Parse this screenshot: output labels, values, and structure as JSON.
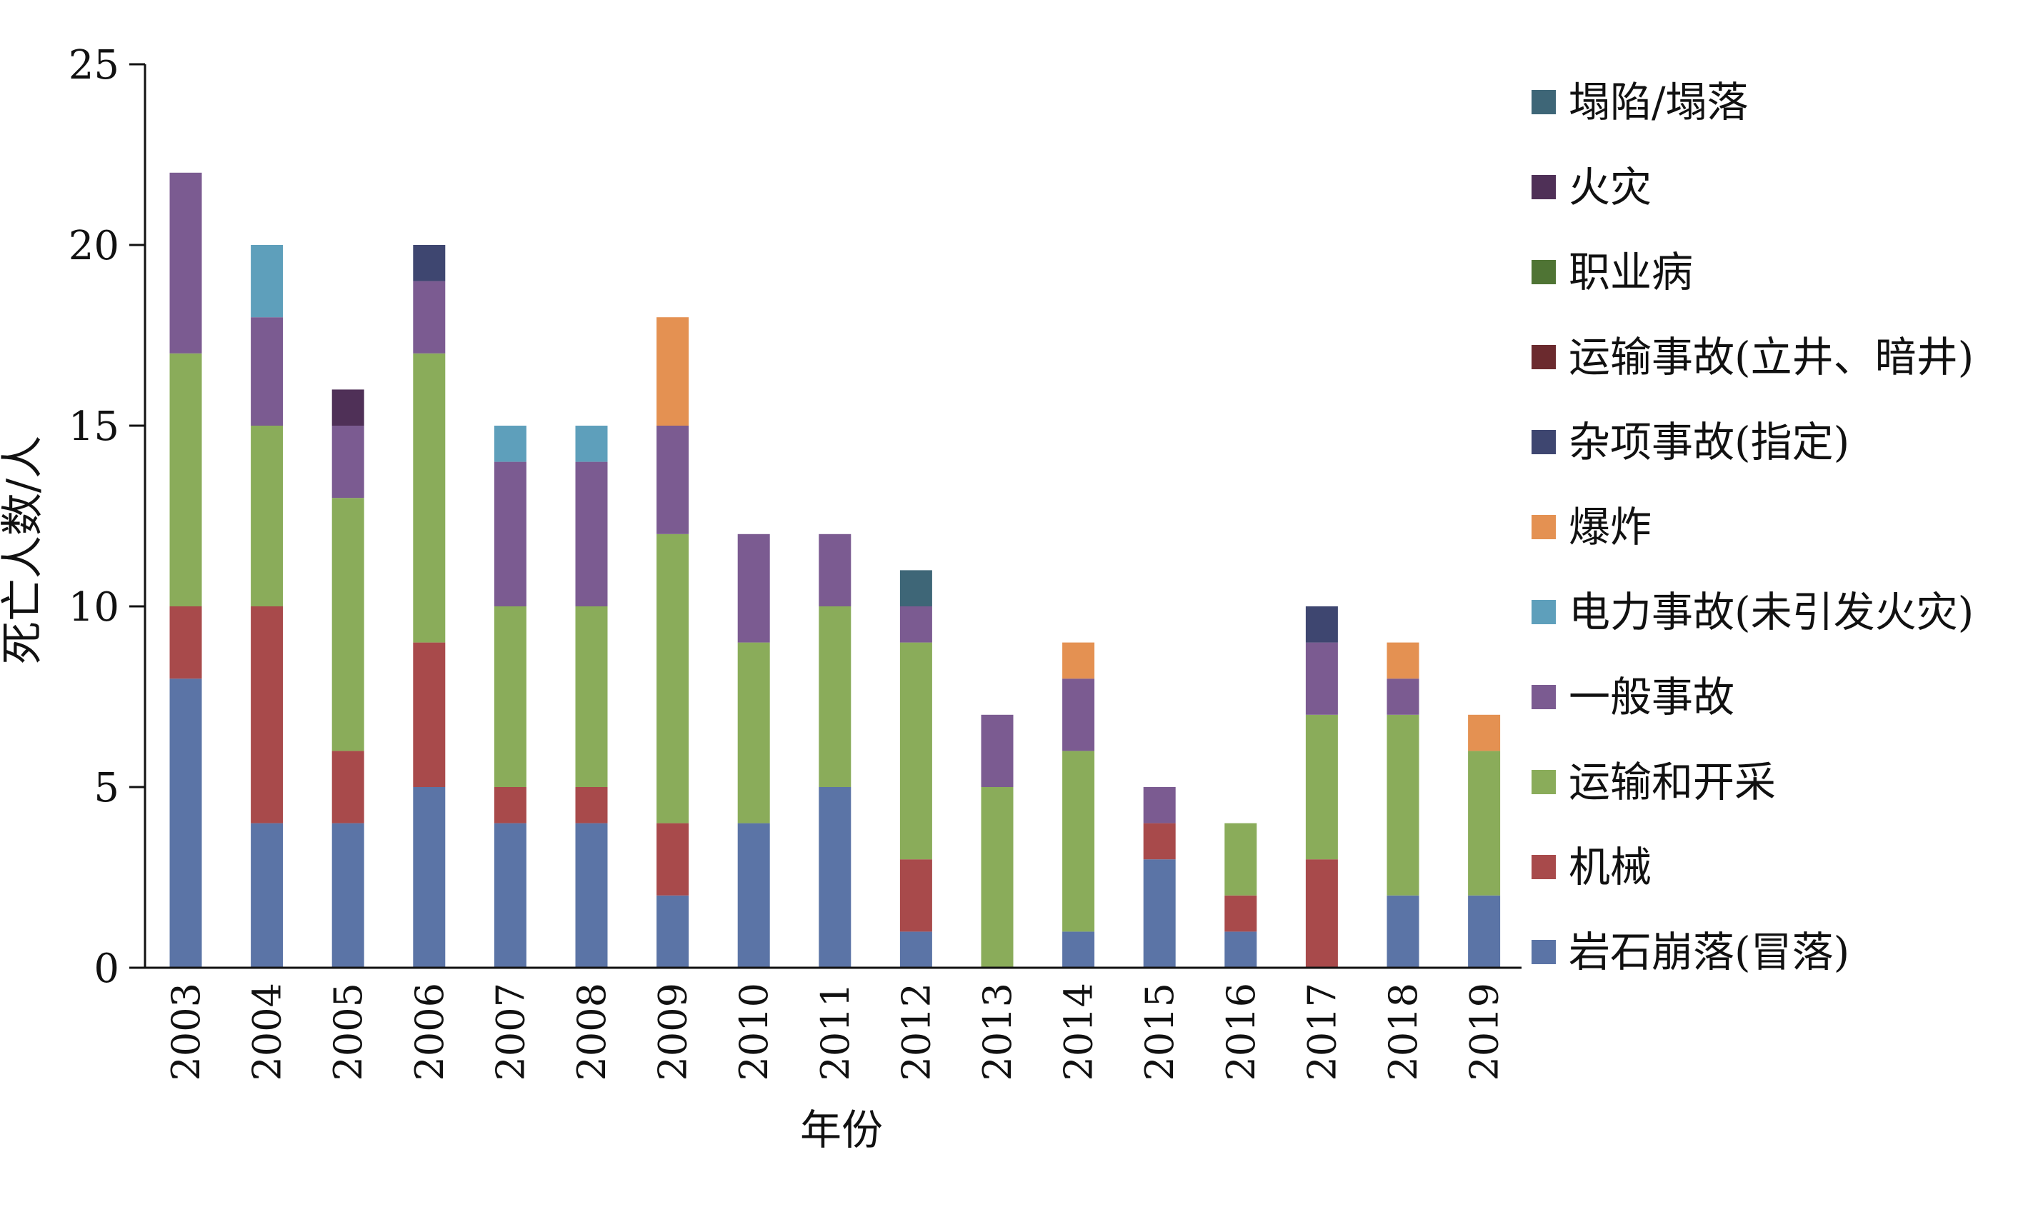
{
  "chart_data": {
    "type": "bar",
    "stacked": true,
    "title": "",
    "xlabel": "年份",
    "ylabel": "死亡人数/人",
    "ylim": [
      0,
      25
    ],
    "yticks": [
      "0",
      "5",
      "10",
      "15",
      "20",
      "25"
    ],
    "categories": [
      "2003",
      "2004",
      "2005",
      "2006",
      "2007",
      "2008",
      "2009",
      "2010",
      "2011",
      "2012",
      "2013",
      "2014",
      "2015",
      "2016",
      "2017",
      "2018",
      "2019"
    ],
    "grid": false,
    "legend_position": "right",
    "series": [
      {
        "name": "岩石崩落(冒落)",
        "color": "#5b74a6",
        "values": [
          8,
          4,
          4,
          5,
          4,
          4,
          2,
          4,
          5,
          1,
          0,
          1,
          3,
          1,
          0,
          2,
          2
        ]
      },
      {
        "name": "机械",
        "color": "#a84a4b",
        "values": [
          2,
          6,
          2,
          4,
          1,
          1,
          2,
          0,
          0,
          2,
          0,
          0,
          1,
          1,
          3,
          0,
          0
        ]
      },
      {
        "name": "运输和开采",
        "color": "#8aac5a",
        "values": [
          7,
          5,
          7,
          8,
          5,
          5,
          8,
          5,
          5,
          6,
          5,
          5,
          0,
          2,
          4,
          5,
          4
        ]
      },
      {
        "name": "一般事故",
        "color": "#7b5b91",
        "values": [
          5,
          3,
          2,
          2,
          4,
          4,
          3,
          3,
          2,
          1,
          2,
          2,
          1,
          0,
          2,
          1,
          0
        ]
      },
      {
        "name": "电力事故(未引发火灾)",
        "color": "#5e9fbb",
        "values": [
          0,
          2,
          0,
          0,
          1,
          1,
          0,
          0,
          0,
          0,
          0,
          0,
          0,
          0,
          0,
          0,
          0
        ]
      },
      {
        "name": "爆炸",
        "color": "#e49152",
        "values": [
          0,
          0,
          0,
          0,
          0,
          0,
          3,
          0,
          0,
          0,
          0,
          1,
          0,
          0,
          0,
          1,
          1
        ]
      },
      {
        "name": "杂项事故(指定)",
        "color": "#3e4670",
        "values": [
          0,
          0,
          0,
          1,
          0,
          0,
          0,
          0,
          0,
          0,
          0,
          0,
          0,
          0,
          1,
          0,
          0
        ]
      },
      {
        "name": "运输事故(立井、暗井)",
        "color": "#6b2a2e",
        "values": [
          0,
          0,
          0,
          0,
          0,
          0,
          0,
          0,
          0,
          0,
          0,
          0,
          0,
          0,
          0,
          0,
          0
        ]
      },
      {
        "name": "职业病",
        "color": "#4f7434",
        "values": [
          0,
          0,
          0,
          0,
          0,
          0,
          0,
          0,
          0,
          0,
          0,
          0,
          0,
          0,
          0,
          0,
          0
        ]
      },
      {
        "name": "火灾",
        "color": "#4f3057",
        "values": [
          0,
          0,
          1,
          0,
          0,
          0,
          0,
          0,
          0,
          0,
          0,
          0,
          0,
          0,
          0,
          0,
          0
        ]
      },
      {
        "name": "塌陷/塌落",
        "color": "#3e6677",
        "values": [
          0,
          0,
          0,
          0,
          0,
          0,
          0,
          0,
          0,
          1,
          0,
          0,
          0,
          0,
          0,
          0,
          0
        ]
      }
    ]
  }
}
